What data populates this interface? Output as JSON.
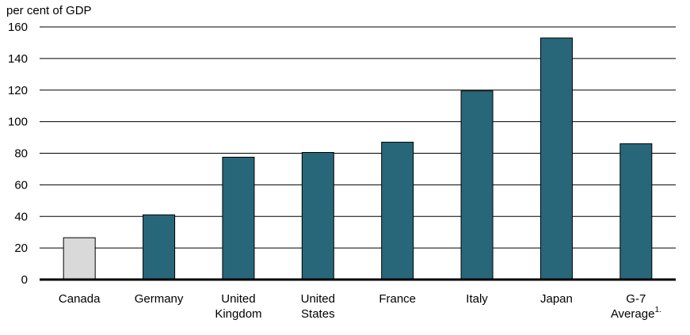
{
  "chart_data": {
    "type": "bar",
    "ylabel": "per cent of GDP",
    "ylim": [
      0,
      160
    ],
    "yticks": [
      0,
      20,
      40,
      60,
      80,
      100,
      120,
      140,
      160
    ],
    "grid": true,
    "categories": [
      [
        "Canada"
      ],
      [
        "Germany"
      ],
      [
        "United",
        "Kingdom"
      ],
      [
        "United",
        "States"
      ],
      [
        "France"
      ],
      [
        "Italy"
      ],
      [
        "Japan"
      ],
      [
        "G-7",
        "Average"
      ]
    ],
    "footnote_marks": [
      "",
      "",
      "",
      "",
      "",
      "",
      "",
      "1."
    ],
    "values": [
      26.5,
      41,
      77.5,
      80.5,
      87,
      119.5,
      153,
      86
    ],
    "colors": {
      "highlight": "#d9d9d9",
      "bar": "#286779",
      "grid": "#000000"
    },
    "bar_color_keys": [
      "highlight",
      "bar",
      "bar",
      "bar",
      "bar",
      "bar",
      "bar",
      "bar"
    ]
  }
}
